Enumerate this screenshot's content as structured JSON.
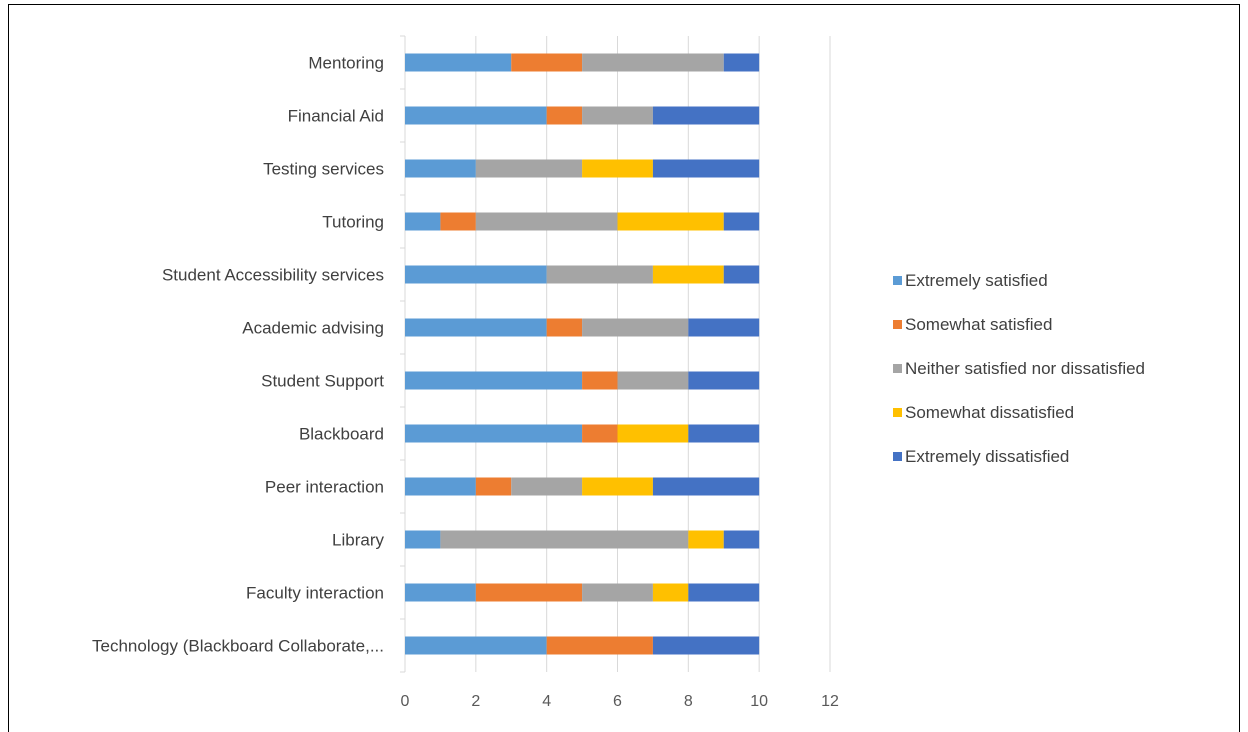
{
  "chart_data": {
    "type": "bar",
    "orientation": "horizontal",
    "stacked": true,
    "title": "",
    "xlabel": "",
    "ylabel": "",
    "categories": [
      "Mentoring",
      "Financial Aid",
      "Testing services",
      "Tutoring",
      "Student Accessibility services",
      "Academic advising",
      "Student Support",
      "Blackboard",
      "Peer interaction",
      "Library",
      "Faculty interaction",
      "Technology (Blackboard Collaborate,..."
    ],
    "series": [
      {
        "name": "Extremely satisfied",
        "color": "#5B9BD5",
        "values": [
          3,
          4,
          2,
          1,
          4,
          4,
          5,
          5,
          2,
          1,
          2,
          4
        ]
      },
      {
        "name": "Somewhat satisfied",
        "color": "#ED7D31",
        "values": [
          2,
          1,
          0,
          1,
          0,
          1,
          1,
          1,
          1,
          0,
          3,
          3
        ]
      },
      {
        "name": "Neither satisfied nor dissatisfied",
        "color": "#A5A5A5",
        "values": [
          4,
          2,
          3,
          4,
          3,
          3,
          2,
          0,
          2,
          7,
          2,
          0
        ]
      },
      {
        "name": "Somewhat dissatisfied",
        "color": "#FFC000",
        "values": [
          0,
          0,
          2,
          3,
          2,
          0,
          0,
          2,
          2,
          1,
          1,
          0
        ]
      },
      {
        "name": "Extremely dissatisfied",
        "color": "#4472C4",
        "values": [
          1,
          3,
          3,
          1,
          1,
          2,
          2,
          2,
          3,
          1,
          2,
          3
        ]
      }
    ],
    "xlim": [
      0,
      12
    ],
    "xticks": [
      0,
      2,
      4,
      6,
      8,
      10,
      12
    ],
    "grid": true,
    "legend": "right"
  }
}
